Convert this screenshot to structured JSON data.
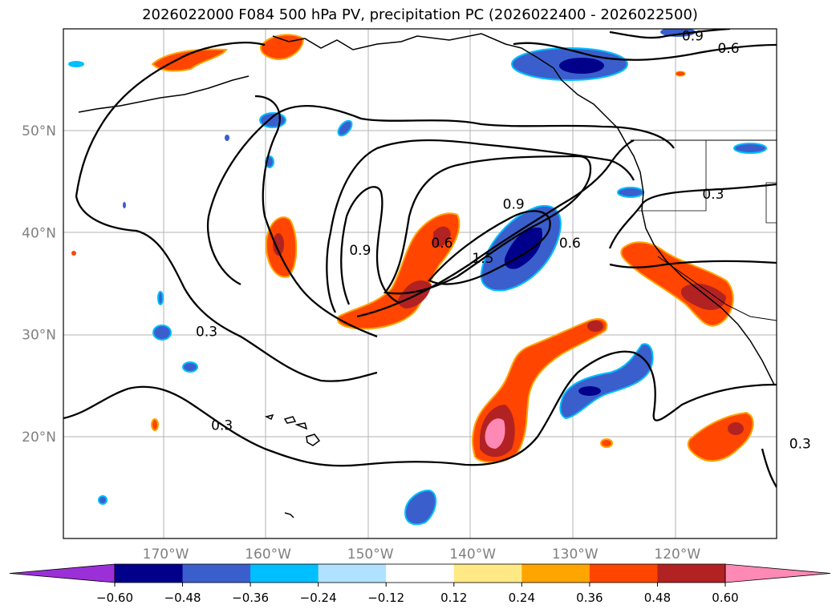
{
  "title": "2026022000 F084 500 hPa PV, precipitation PC (2026022400 - 2026022500)",
  "latitudes": [
    {
      "label": "50°N",
      "value": 50
    },
    {
      "label": "40°N",
      "value": 40
    },
    {
      "label": "30°N",
      "value": 30
    },
    {
      "label": "20°N",
      "value": 20
    }
  ],
  "longitudes": [
    {
      "label": "170°W",
      "value": -170
    },
    {
      "label": "160°W",
      "value": -160
    },
    {
      "label": "150°W",
      "value": -150
    },
    {
      "label": "140°W",
      "value": -140
    },
    {
      "label": "130°W",
      "value": -130
    },
    {
      "label": "120°W",
      "value": -120
    }
  ],
  "contour_labels": [
    {
      "text": "0.9",
      "lon": -118.5,
      "lat": 59.0
    },
    {
      "text": "0.6",
      "lon": -115.0,
      "lat": 57.8
    },
    {
      "text": "0.9",
      "lon": -136.0,
      "lat": 42.5
    },
    {
      "text": "0.6",
      "lon": -143.0,
      "lat": 38.7
    },
    {
      "text": "0.9",
      "lon": -151.0,
      "lat": 38.0
    },
    {
      "text": "0.6",
      "lon": -130.5,
      "lat": 38.7
    },
    {
      "text": "1.5",
      "lon": -139.0,
      "lat": 37.2
    },
    {
      "text": "0.3",
      "lon": -116.5,
      "lat": 43.5
    },
    {
      "text": "0.3",
      "lon": -166.0,
      "lat": 30.0
    },
    {
      "text": "0.3",
      "lon": -164.5,
      "lat": 20.8
    },
    {
      "text": "0.3",
      "lon": -108.0,
      "lat": 19.0
    }
  ],
  "colorbar": {
    "ticks": [
      "−0.60",
      "−0.48",
      "−0.36",
      "−0.24",
      "−0.12",
      "0.12",
      "0.24",
      "0.36",
      "0.48",
      "0.60"
    ],
    "colors": [
      "#9b30d9",
      "#00008b",
      "#3a5fcd",
      "#00bfff",
      "#b0e2ff",
      "#ffffff",
      "#ffe985",
      "#ffa500",
      "#ff4500",
      "#b22222",
      "#ff89b5"
    ]
  }
}
